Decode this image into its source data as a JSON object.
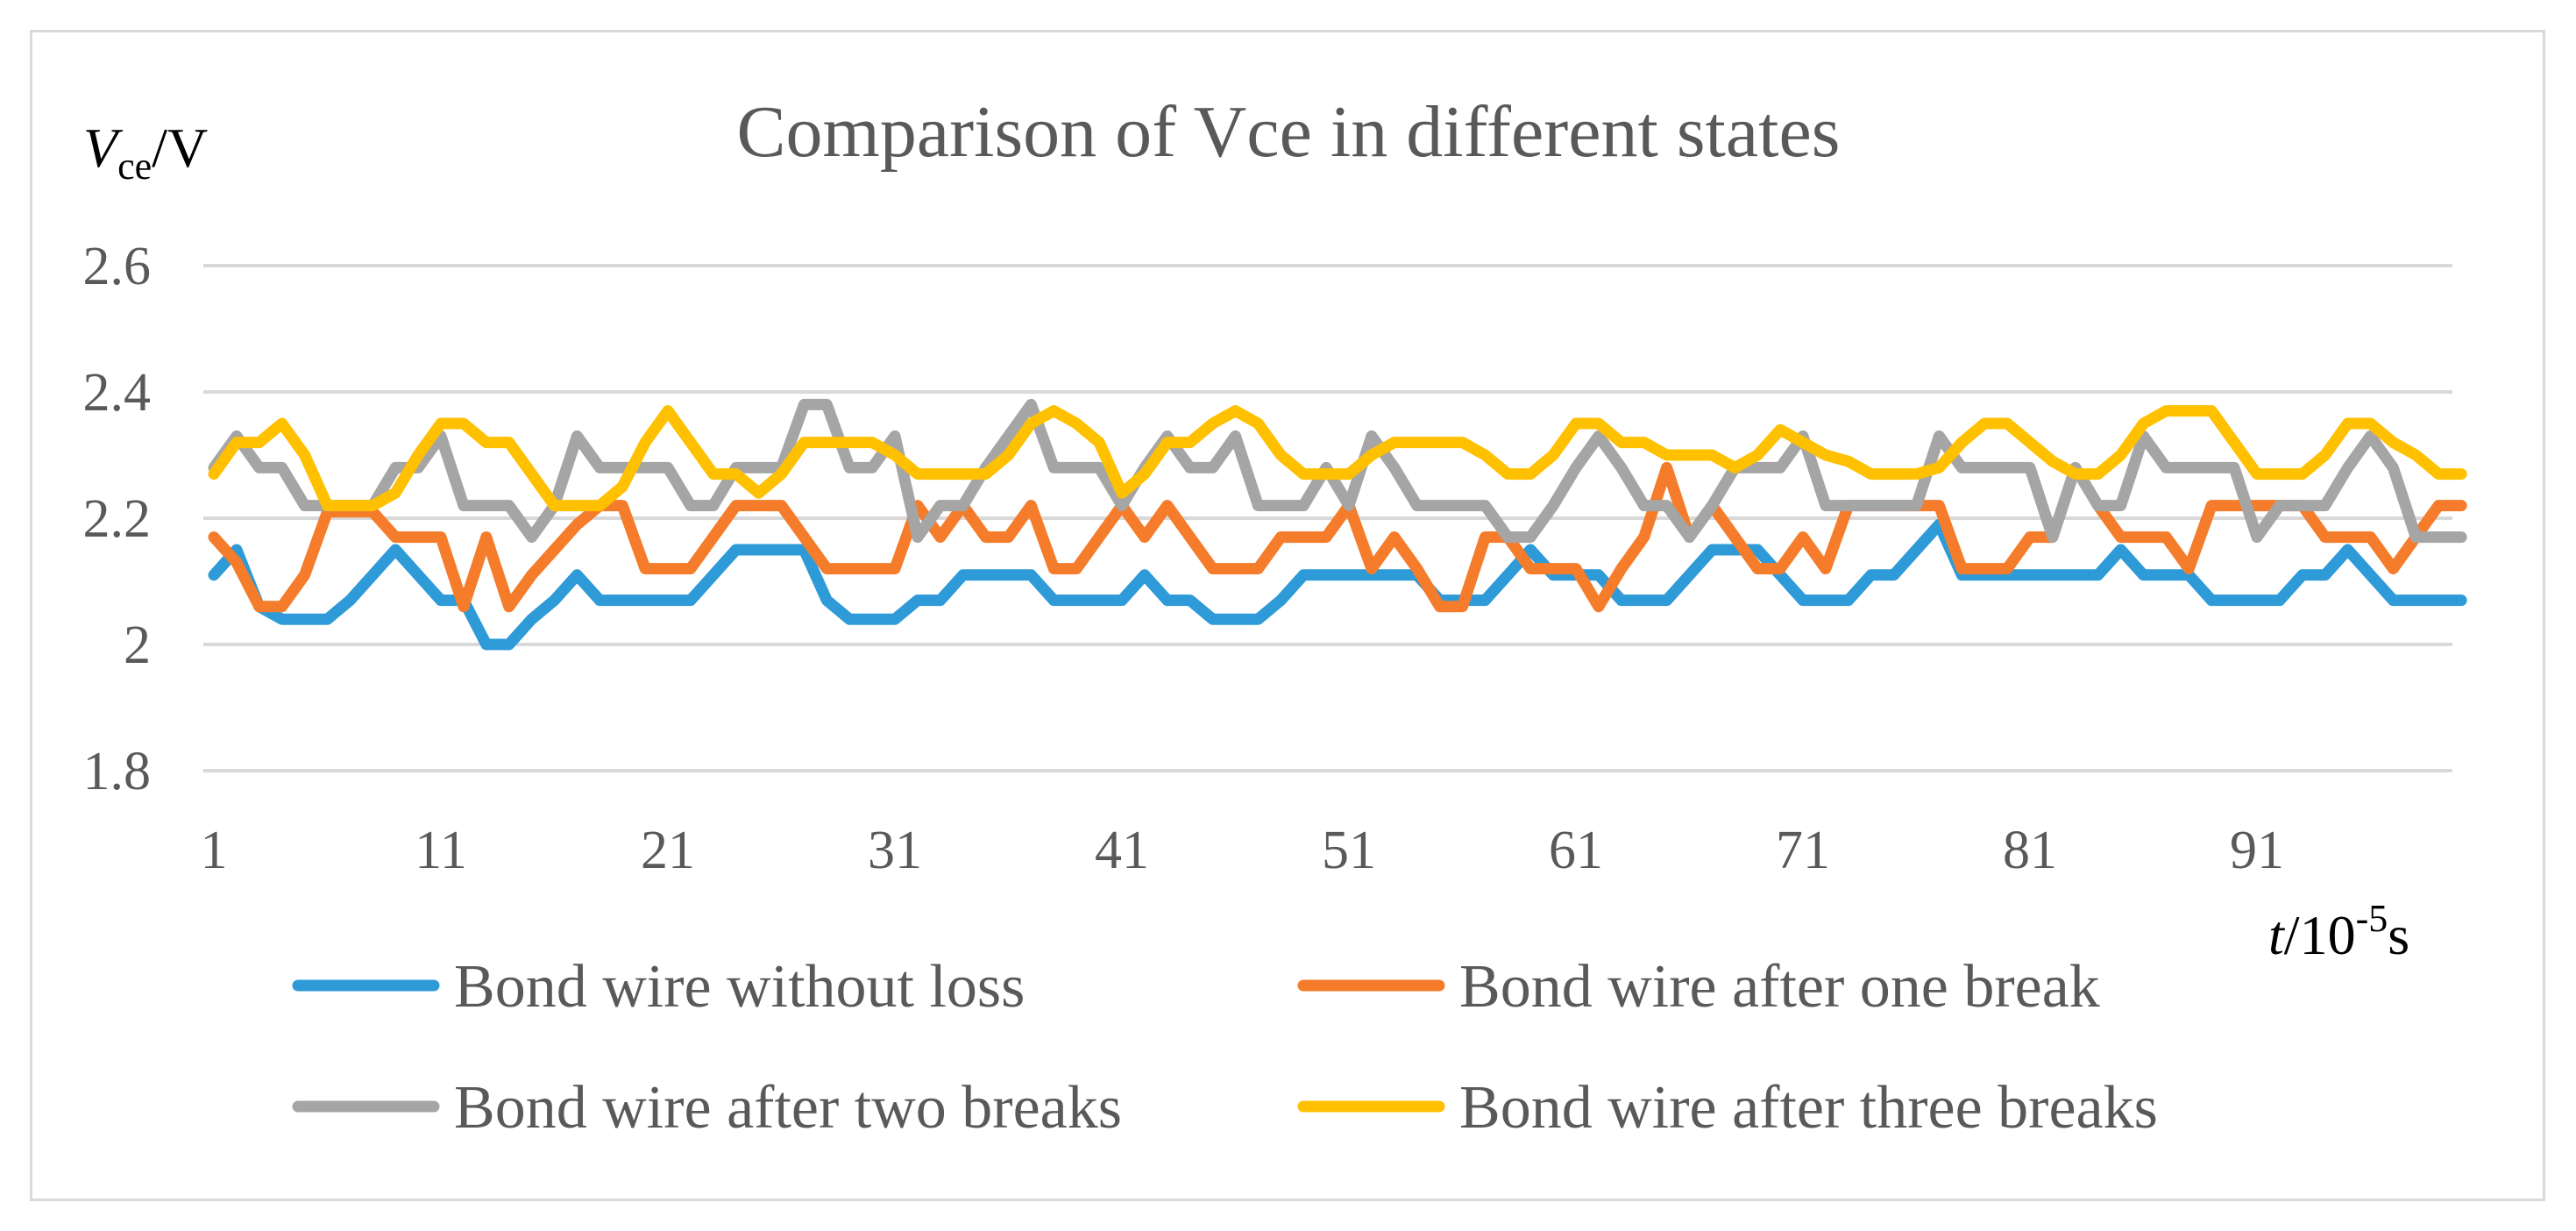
{
  "chart_data": {
    "type": "line",
    "title": "Comparison of Vce in different states",
    "ylabel": {
      "main": "V",
      "sub": "ce",
      "unit": "/V"
    },
    "xlabel": {
      "main": "t",
      "mid": "/10",
      "sup": "-5",
      "unit": "s"
    },
    "ylim": [
      1.8,
      2.6
    ],
    "yticks": [
      1.8,
      2.0,
      2.2,
      2.4,
      2.6
    ],
    "ytick_labels": [
      "1.8",
      "2",
      "2.2",
      "2.4",
      "2.6"
    ],
    "xlim": [
      1,
      100
    ],
    "xticks": [
      1,
      11,
      21,
      31,
      41,
      51,
      61,
      71,
      81,
      91
    ],
    "xtick_labels": [
      "1",
      "11",
      "21",
      "31",
      "41",
      "51",
      "61",
      "71",
      "81",
      "91"
    ],
    "grid": true,
    "legend_position": "bottom",
    "series": [
      {
        "name": "Bond wire without loss",
        "color": "#2e9ad8",
        "values": [
          2.11,
          2.15,
          2.06,
          2.04,
          2.04,
          2.04,
          2.07,
          2.11,
          2.15,
          2.11,
          2.07,
          2.07,
          2.0,
          2.0,
          2.04,
          2.07,
          2.11,
          2.07,
          2.07,
          2.07,
          2.07,
          2.07,
          2.11,
          2.15,
          2.15,
          2.15,
          2.15,
          2.07,
          2.04,
          2.04,
          2.04,
          2.07,
          2.07,
          2.11,
          2.11,
          2.11,
          2.11,
          2.07,
          2.07,
          2.07,
          2.07,
          2.11,
          2.07,
          2.07,
          2.04,
          2.04,
          2.04,
          2.07,
          2.11,
          2.11,
          2.11,
          2.11,
          2.11,
          2.11,
          2.07,
          2.07,
          2.07,
          2.11,
          2.15,
          2.11,
          2.11,
          2.11,
          2.07,
          2.07,
          2.07,
          2.11,
          2.15,
          2.15,
          2.15,
          2.11,
          2.07,
          2.07,
          2.07,
          2.11,
          2.11,
          2.15,
          2.19,
          2.11,
          2.11,
          2.11,
          2.11,
          2.11,
          2.11,
          2.11,
          2.15,
          2.11,
          2.11,
          2.11,
          2.07,
          2.07,
          2.07,
          2.07,
          2.11,
          2.11,
          2.15,
          2.11,
          2.07,
          2.07,
          2.07,
          2.07
        ]
      },
      {
        "name": "Bond wire after one break",
        "color": "#f47c2a",
        "values": [
          2.17,
          2.13,
          2.06,
          2.06,
          2.11,
          2.21,
          2.21,
          2.21,
          2.17,
          2.17,
          2.17,
          2.06,
          2.17,
          2.06,
          2.11,
          2.15,
          2.19,
          2.22,
          2.22,
          2.12,
          2.12,
          2.12,
          2.17,
          2.22,
          2.22,
          2.22,
          2.17,
          2.12,
          2.12,
          2.12,
          2.12,
          2.22,
          2.17,
          2.22,
          2.17,
          2.17,
          2.22,
          2.12,
          2.12,
          2.17,
          2.22,
          2.17,
          2.22,
          2.17,
          2.12,
          2.12,
          2.12,
          2.17,
          2.17,
          2.17,
          2.22,
          2.12,
          2.17,
          2.12,
          2.06,
          2.06,
          2.17,
          2.17,
          2.12,
          2.12,
          2.12,
          2.06,
          2.12,
          2.17,
          2.28,
          2.17,
          2.22,
          2.17,
          2.12,
          2.12,
          2.17,
          2.12,
          2.22,
          2.22,
          2.22,
          2.22,
          2.22,
          2.12,
          2.12,
          2.12,
          2.17,
          2.17,
          2.28,
          2.22,
          2.17,
          2.17,
          2.17,
          2.12,
          2.22,
          2.22,
          2.22,
          2.22,
          2.22,
          2.17,
          2.17,
          2.17,
          2.12,
          2.17,
          2.22,
          2.22
        ]
      },
      {
        "name": "Bond wire after two breaks",
        "color": "#a5a5a5",
        "values": [
          2.28,
          2.33,
          2.28,
          2.28,
          2.22,
          2.22,
          2.22,
          2.22,
          2.28,
          2.28,
          2.33,
          2.22,
          2.22,
          2.22,
          2.17,
          2.22,
          2.33,
          2.28,
          2.28,
          2.28,
          2.28,
          2.22,
          2.22,
          2.28,
          2.28,
          2.28,
          2.38,
          2.38,
          2.28,
          2.28,
          2.33,
          2.17,
          2.22,
          2.22,
          2.28,
          2.33,
          2.38,
          2.28,
          2.28,
          2.28,
          2.22,
          2.28,
          2.33,
          2.28,
          2.28,
          2.33,
          2.22,
          2.22,
          2.22,
          2.28,
          2.22,
          2.33,
          2.28,
          2.22,
          2.22,
          2.22,
          2.22,
          2.17,
          2.17,
          2.22,
          2.28,
          2.33,
          2.28,
          2.22,
          2.22,
          2.17,
          2.22,
          2.28,
          2.28,
          2.28,
          2.33,
          2.22,
          2.22,
          2.22,
          2.22,
          2.22,
          2.33,
          2.28,
          2.28,
          2.28,
          2.28,
          2.17,
          2.28,
          2.22,
          2.22,
          2.33,
          2.28,
          2.28,
          2.28,
          2.28,
          2.17,
          2.22,
          2.22,
          2.22,
          2.28,
          2.33,
          2.28,
          2.17,
          2.17,
          2.17
        ]
      },
      {
        "name": "Bond wire after three breaks",
        "color": "#ffc000",
        "values": [
          2.27,
          2.32,
          2.32,
          2.35,
          2.3,
          2.22,
          2.22,
          2.22,
          2.24,
          2.3,
          2.35,
          2.35,
          2.32,
          2.32,
          2.27,
          2.22,
          2.22,
          2.22,
          2.25,
          2.32,
          2.37,
          2.32,
          2.27,
          2.27,
          2.24,
          2.27,
          2.32,
          2.32,
          2.32,
          2.32,
          2.3,
          2.27,
          2.27,
          2.27,
          2.27,
          2.3,
          2.35,
          2.37,
          2.35,
          2.32,
          2.24,
          2.27,
          2.32,
          2.32,
          2.35,
          2.37,
          2.35,
          2.3,
          2.27,
          2.27,
          2.27,
          2.3,
          2.32,
          2.32,
          2.32,
          2.32,
          2.3,
          2.27,
          2.27,
          2.3,
          2.35,
          2.35,
          2.32,
          2.32,
          2.3,
          2.3,
          2.3,
          2.28,
          2.3,
          2.34,
          2.32,
          2.3,
          2.29,
          2.27,
          2.27,
          2.27,
          2.28,
          2.32,
          2.35,
          2.35,
          2.32,
          2.29,
          2.27,
          2.27,
          2.3,
          2.35,
          2.37,
          2.37,
          2.37,
          2.32,
          2.27,
          2.27,
          2.27,
          2.3,
          2.35,
          2.35,
          2.32,
          2.3,
          2.27,
          2.27
        ]
      }
    ]
  }
}
